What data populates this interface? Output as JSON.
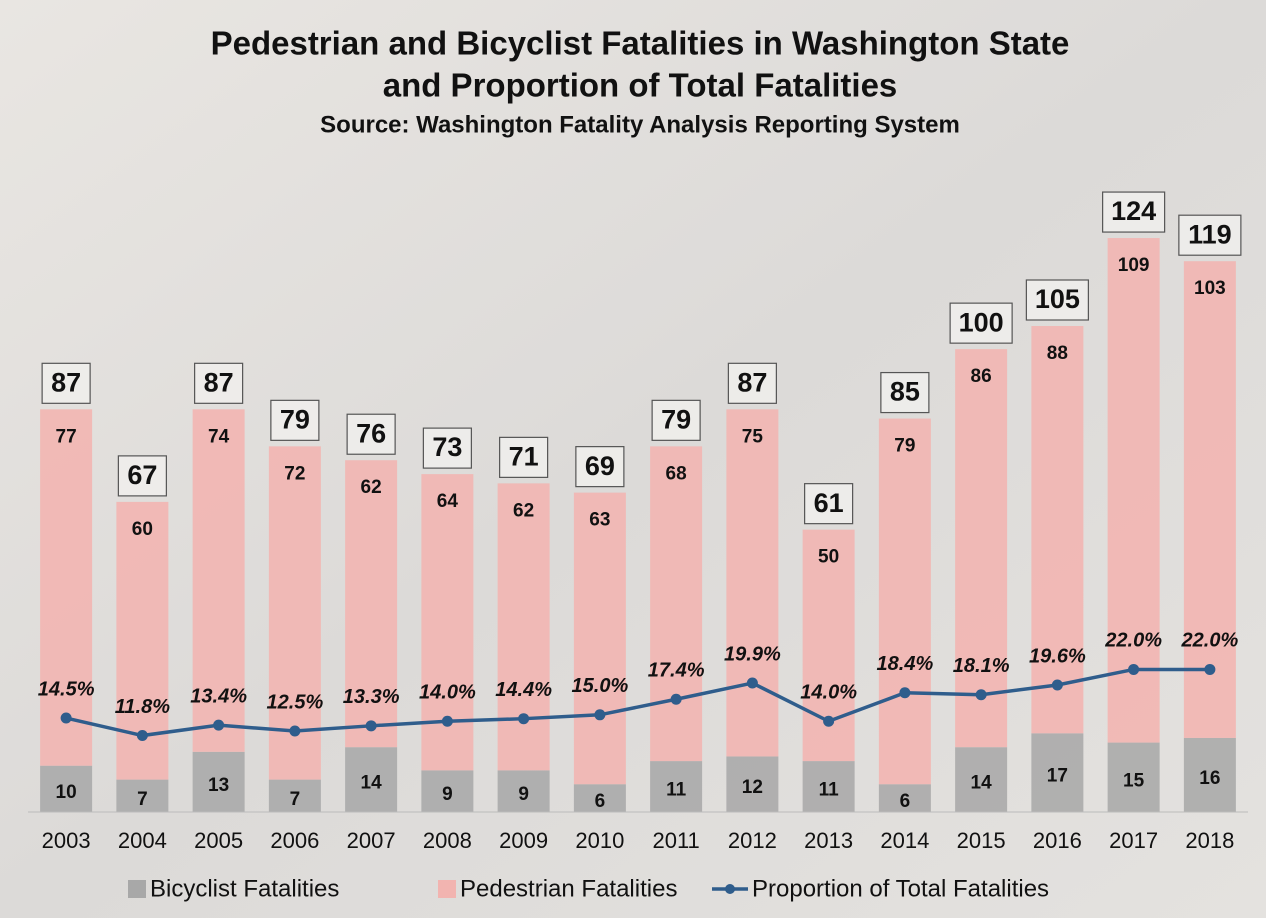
{
  "chart_data": {
    "type": "stacked-bar-line",
    "title": [
      "Pedestrian and Bicyclist Fatalities in Washington State",
      "and Proportion of Total Fatalities"
    ],
    "subtitle": "Source: Washington Fatality Analysis Reporting System",
    "categories": [
      "2003",
      "2004",
      "2005",
      "2006",
      "2007",
      "2008",
      "2009",
      "2010",
      "2011",
      "2012",
      "2013",
      "2014",
      "2015",
      "2016",
      "2017",
      "2018"
    ],
    "series": [
      {
        "name": "Bicyclist Fatalities",
        "color": "#a8a8a8",
        "values": [
          10,
          7,
          13,
          7,
          14,
          9,
          9,
          6,
          11,
          12,
          11,
          6,
          14,
          17,
          15,
          16
        ]
      },
      {
        "name": "Pedestrian Fatalities",
        "color": "#f2b4b0",
        "values": [
          77,
          60,
          74,
          72,
          62,
          64,
          62,
          63,
          68,
          75,
          50,
          79,
          86,
          88,
          109,
          103
        ]
      },
      {
        "name": "Proportion of Total Fatalities",
        "color": "#2f5d8c",
        "axis": "y2",
        "type": "line",
        "values": [
          14.5,
          11.8,
          13.4,
          12.5,
          13.3,
          14.0,
          14.4,
          15.0,
          17.4,
          19.9,
          14.0,
          18.4,
          18.1,
          19.6,
          22.0,
          22.0
        ],
        "value_labels": [
          "14.5%",
          "11.8%",
          "13.4%",
          "12.5%",
          "13.3%",
          "14.0%",
          "14.4%",
          "15.0%",
          "17.4%",
          "19.9%",
          "14.0%",
          "18.4%",
          "18.1%",
          "19.6%",
          "22.0%",
          "22.0%"
        ]
      }
    ],
    "totals": [
      87,
      67,
      87,
      79,
      76,
      73,
      71,
      69,
      79,
      87,
      61,
      85,
      100,
      105,
      124,
      119
    ],
    "ylim": [
      0,
      140
    ],
    "y2lim": [
      0,
      100
    ],
    "legend": "bottom"
  }
}
